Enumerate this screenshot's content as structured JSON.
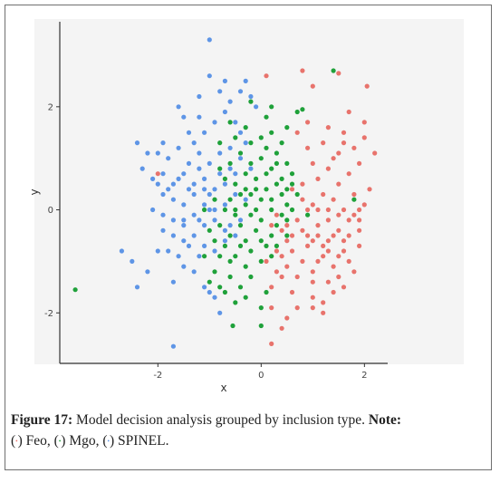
{
  "chart_data": {
    "type": "scatter",
    "xlabel": "x",
    "ylabel": "y",
    "xlim": [
      -3.9,
      2.45
    ],
    "ylim": [
      -2.98,
      3.65
    ],
    "xticks": [
      -2,
      0,
      2
    ],
    "yticks": [
      -2,
      0,
      2
    ],
    "tick_labels_x": [
      "-2",
      "0",
      "2"
    ],
    "tick_labels_y": [
      "-2",
      "0",
      "2"
    ],
    "grid": false,
    "series": [
      {
        "name": "Feo",
        "color": "#e8736c",
        "points": [
          [
            0.3,
            -0.1
          ],
          [
            0.5,
            -0.3
          ],
          [
            0.7,
            -0.2
          ],
          [
            0.9,
            -0.5
          ],
          [
            1.1,
            -0.3
          ],
          [
            1.3,
            -0.6
          ],
          [
            0.6,
            -0.8
          ],
          [
            0.8,
            -1.0
          ],
          [
            1.0,
            -1.2
          ],
          [
            1.2,
            -0.9
          ],
          [
            1.4,
            -1.1
          ],
          [
            1.6,
            -0.8
          ],
          [
            0.4,
            -1.3
          ],
          [
            0.2,
            -1.5
          ],
          [
            0.6,
            -1.6
          ],
          [
            1.0,
            -1.7
          ],
          [
            1.3,
            -1.4
          ],
          [
            1.5,
            -1.3
          ],
          [
            1.7,
            -1.0
          ],
          [
            1.9,
            -0.7
          ],
          [
            0.8,
            0.2
          ],
          [
            1.0,
            0.1
          ],
          [
            1.2,
            0.3
          ],
          [
            1.4,
            0.2
          ],
          [
            1.6,
            0.0
          ],
          [
            1.8,
            0.3
          ],
          [
            2.0,
            0.1
          ],
          [
            1.1,
            0.6
          ],
          [
            1.3,
            0.8
          ],
          [
            1.5,
            0.5
          ],
          [
            1.7,
            0.7
          ],
          [
            1.9,
            0.9
          ],
          [
            1.0,
            0.9
          ],
          [
            0.9,
            1.2
          ],
          [
            1.2,
            1.3
          ],
          [
            1.5,
            1.1
          ],
          [
            1.8,
            1.2
          ],
          [
            2.0,
            1.4
          ],
          [
            2.2,
            1.1
          ],
          [
            1.3,
            1.6
          ],
          [
            1.6,
            1.5
          ],
          [
            0.7,
            1.5
          ],
          [
            0.5,
            -0.6
          ],
          [
            0.3,
            -0.8
          ],
          [
            0.1,
            -1.0
          ],
          [
            0.2,
            -1.9
          ],
          [
            0.5,
            -2.1
          ],
          [
            0.7,
            -1.9
          ],
          [
            1.0,
            -1.9
          ],
          [
            1.2,
            -2.0
          ],
          [
            0.4,
            -2.3
          ],
          [
            0.2,
            -2.6
          ],
          [
            1.4,
            -1.6
          ],
          [
            1.6,
            -1.5
          ],
          [
            1.8,
            -1.2
          ],
          [
            0.9,
            -0.7
          ],
          [
            1.1,
            -0.5
          ],
          [
            1.3,
            -0.2
          ],
          [
            1.5,
            -0.4
          ],
          [
            1.7,
            -0.5
          ],
          [
            1.9,
            -0.2
          ],
          [
            0.6,
            0.4
          ],
          [
            0.8,
            0.5
          ],
          [
            1.4,
            1.0
          ],
          [
            1.6,
            1.3
          ],
          [
            2.1,
            0.4
          ],
          [
            1.0,
            -1.4
          ],
          [
            0.7,
            -1.3
          ],
          [
            0.5,
            -1.1
          ],
          [
            1.1,
            -1.0
          ],
          [
            1.3,
            -0.8
          ],
          [
            1.5,
            -0.9
          ],
          [
            0.8,
            -0.4
          ],
          [
            1.0,
            -0.6
          ],
          [
            1.2,
            -0.7
          ],
          [
            1.4,
            -0.5
          ],
          [
            0.4,
            -0.4
          ],
          [
            0.6,
            -0.5
          ],
          [
            0.2,
            -0.3
          ],
          [
            0.9,
            0.0
          ],
          [
            1.1,
            0.0
          ],
          [
            1.3,
            0.0
          ],
          [
            1.5,
            -0.1
          ],
          [
            1.7,
            -0.2
          ],
          [
            1.9,
            0.0
          ],
          [
            2.05,
            2.4
          ],
          [
            1.5,
            2.65
          ],
          [
            1.0,
            2.4
          ],
          [
            0.8,
            2.7
          ],
          [
            0.1,
            2.6
          ],
          [
            -2.0,
            0.7
          ],
          [
            1.9,
            -0.4
          ],
          [
            1.7,
            1.9
          ],
          [
            2.0,
            1.7
          ],
          [
            0.9,
            1.7
          ],
          [
            1.2,
            -1.8
          ],
          [
            0.4,
            -0.9
          ],
          [
            0.3,
            -1.2
          ],
          [
            1.8,
            -0.1
          ],
          [
            1.6,
            -0.6
          ]
        ]
      },
      {
        "name": "Mgo",
        "color": "#1fa13a",
        "points": [
          [
            0.0,
            0.2
          ],
          [
            0.1,
            0.4
          ],
          [
            -0.1,
            0.6
          ],
          [
            0.2,
            0.8
          ],
          [
            0.3,
            0.5
          ],
          [
            0.4,
            0.3
          ],
          [
            0.5,
            0.1
          ],
          [
            0.2,
            0.0
          ],
          [
            0.0,
            -0.2
          ],
          [
            -0.2,
            -0.1
          ],
          [
            -0.3,
            0.1
          ],
          [
            -0.4,
            0.3
          ],
          [
            -0.5,
            0.5
          ],
          [
            -0.3,
            0.7
          ],
          [
            -0.2,
            0.9
          ],
          [
            0.0,
            1.0
          ],
          [
            0.1,
            1.2
          ],
          [
            0.3,
            1.1
          ],
          [
            0.5,
            0.9
          ],
          [
            0.6,
            0.7
          ],
          [
            0.4,
            1.3
          ],
          [
            0.2,
            1.5
          ],
          [
            0.0,
            1.4
          ],
          [
            -0.2,
            1.3
          ],
          [
            -0.4,
            1.1
          ],
          [
            -0.6,
            0.9
          ],
          [
            -0.7,
            0.6
          ],
          [
            -0.6,
            0.2
          ],
          [
            -0.5,
            -0.1
          ],
          [
            -0.4,
            -0.3
          ],
          [
            -0.6,
            -0.5
          ],
          [
            -0.8,
            -0.3
          ],
          [
            -0.7,
            -0.7
          ],
          [
            -0.5,
            -0.9
          ],
          [
            -0.3,
            -1.1
          ],
          [
            -0.6,
            -1.3
          ],
          [
            -0.4,
            -1.5
          ],
          [
            -0.2,
            -1.3
          ],
          [
            0.0,
            -1.0
          ],
          [
            0.1,
            -0.7
          ],
          [
            0.2,
            -0.5
          ],
          [
            0.3,
            -0.3
          ],
          [
            0.5,
            -0.2
          ],
          [
            0.6,
            0.0
          ],
          [
            0.5,
            0.4
          ],
          [
            0.7,
            0.3
          ],
          [
            -0.1,
            -0.4
          ],
          [
            -0.3,
            -0.6
          ],
          [
            -0.8,
            -0.9
          ],
          [
            -0.9,
            -1.2
          ],
          [
            -0.7,
            -1.6
          ],
          [
            -0.5,
            -1.8
          ],
          [
            -0.3,
            -1.7
          ],
          [
            0.1,
            -1.6
          ],
          [
            0.0,
            -1.9
          ],
          [
            -0.2,
            0.3
          ],
          [
            -0.1,
            0.0
          ],
          [
            0.2,
            0.2
          ],
          [
            0.4,
            0.6
          ],
          [
            0.3,
            0.9
          ],
          [
            0.1,
            0.7
          ],
          [
            -0.5,
            0.0
          ],
          [
            -0.7,
            0.0
          ],
          [
            -0.9,
            0.2
          ],
          [
            -1.1,
            0.0
          ],
          [
            -1.0,
            -0.4
          ],
          [
            -0.9,
            -0.6
          ],
          [
            -1.1,
            -0.9
          ],
          [
            -1.0,
            -1.4
          ],
          [
            -0.8,
            -1.5
          ],
          [
            -0.6,
            -1.0
          ],
          [
            -0.2,
            -0.8
          ],
          [
            0.0,
            -0.6
          ],
          [
            -0.4,
            -0.7
          ],
          [
            0.2,
            -0.9
          ],
          [
            0.4,
            -0.1
          ],
          [
            0.6,
            0.5
          ],
          [
            -0.5,
            1.4
          ],
          [
            -0.3,
            1.6
          ],
          [
            0.1,
            1.8
          ],
          [
            -0.6,
            1.7
          ],
          [
            0.7,
            1.9
          ],
          [
            0.8,
            1.95
          ],
          [
            -0.8,
            1.3
          ],
          [
            0.9,
            -0.1
          ],
          [
            1.4,
            2.7
          ],
          [
            1.8,
            0.2
          ],
          [
            -3.6,
            -1.55
          ],
          [
            -0.55,
            -2.25
          ],
          [
            0.0,
            -2.25
          ],
          [
            0.2,
            2.0
          ],
          [
            -0.2,
            2.1
          ],
          [
            0.5,
            1.6
          ],
          [
            0.3,
            -0.7
          ],
          [
            -0.1,
            0.4
          ],
          [
            -0.3,
            0.4
          ],
          [
            0.5,
            -0.5
          ],
          [
            -0.8,
            0.8
          ]
        ]
      },
      {
        "name": "SPINEL",
        "color": "#5e95e6",
        "points": [
          [
            -1.0,
            3.3
          ],
          [
            -1.0,
            2.6
          ],
          [
            -0.7,
            2.5
          ],
          [
            -0.3,
            2.5
          ],
          [
            -0.2,
            2.2
          ],
          [
            -0.4,
            2.3
          ],
          [
            -0.6,
            2.1
          ],
          [
            -1.2,
            2.2
          ],
          [
            -1.6,
            2.0
          ],
          [
            -1.5,
            1.8
          ],
          [
            -1.4,
            1.5
          ],
          [
            -1.3,
            1.3
          ],
          [
            -1.1,
            1.5
          ],
          [
            -0.9,
            1.7
          ],
          [
            -0.7,
            1.9
          ],
          [
            -0.5,
            1.7
          ],
          [
            -0.4,
            1.5
          ],
          [
            -2.4,
            1.3
          ],
          [
            -2.0,
            1.1
          ],
          [
            -1.8,
            1.0
          ],
          [
            -1.6,
            1.2
          ],
          [
            -1.4,
            0.9
          ],
          [
            -1.2,
            1.1
          ],
          [
            -1.0,
            0.9
          ],
          [
            -0.8,
            1.1
          ],
          [
            -0.6,
            1.2
          ],
          [
            -0.4,
            1.0
          ],
          [
            -0.2,
            0.8
          ],
          [
            -2.3,
            0.8
          ],
          [
            -2.1,
            0.6
          ],
          [
            -1.9,
            0.7
          ],
          [
            -1.7,
            0.5
          ],
          [
            -1.5,
            0.7
          ],
          [
            -1.3,
            0.5
          ],
          [
            -1.1,
            0.6
          ],
          [
            -0.9,
            0.4
          ],
          [
            -0.7,
            0.5
          ],
          [
            -0.5,
            0.3
          ],
          [
            -1.9,
            0.3
          ],
          [
            -1.7,
            0.2
          ],
          [
            -1.5,
            0.1
          ],
          [
            -1.3,
            0.3
          ],
          [
            -1.1,
            0.1
          ],
          [
            -0.9,
            0.0
          ],
          [
            -0.7,
            0.1
          ],
          [
            -2.1,
            0.0
          ],
          [
            -1.9,
            -0.1
          ],
          [
            -1.7,
            -0.2
          ],
          [
            -1.5,
            -0.3
          ],
          [
            -1.3,
            -0.1
          ],
          [
            -1.1,
            -0.3
          ],
          [
            -0.9,
            -0.2
          ],
          [
            -0.7,
            -0.4
          ],
          [
            -0.5,
            -0.5
          ],
          [
            -1.7,
            -0.5
          ],
          [
            -1.5,
            -0.6
          ],
          [
            -1.3,
            -0.5
          ],
          [
            -1.1,
            -0.7
          ],
          [
            -0.9,
            -0.8
          ],
          [
            -1.9,
            -0.4
          ],
          [
            -2.7,
            -0.8
          ],
          [
            -1.8,
            -0.8
          ],
          [
            -1.6,
            -0.9
          ],
          [
            -1.4,
            -0.7
          ],
          [
            -1.2,
            -0.9
          ],
          [
            -2.2,
            -1.2
          ],
          [
            -2.4,
            -1.5
          ],
          [
            -1.7,
            -1.4
          ],
          [
            -1.5,
            -1.1
          ],
          [
            -1.3,
            -1.2
          ],
          [
            -1.1,
            -1.5
          ],
          [
            -0.9,
            -1.7
          ],
          [
            -1.0,
            -1.6
          ],
          [
            -0.8,
            -2.0
          ],
          [
            -1.7,
            -2.65
          ],
          [
            -2.5,
            -1.0
          ],
          [
            -2.0,
            -0.8
          ],
          [
            -1.2,
            0.8
          ],
          [
            -0.3,
            1.3
          ],
          [
            -0.6,
            0.8
          ],
          [
            -0.8,
            0.7
          ],
          [
            -1.0,
            0.3
          ],
          [
            -1.2,
            -0.2
          ],
          [
            -1.4,
            0.4
          ],
          [
            -1.6,
            0.6
          ],
          [
            -1.8,
            0.4
          ],
          [
            -2.0,
            0.5
          ],
          [
            -0.4,
            -0.2
          ],
          [
            -0.6,
            -0.3
          ],
          [
            -0.3,
            0.2
          ],
          [
            -2.2,
            1.1
          ],
          [
            -1.9,
            1.3
          ],
          [
            -1.2,
            1.8
          ],
          [
            -0.1,
            2.0
          ],
          [
            -0.8,
            2.3
          ],
          [
            -1.0,
            0.0
          ],
          [
            -0.7,
            -0.6
          ],
          [
            -1.5,
            -0.2
          ],
          [
            -1.1,
            0.4
          ],
          [
            -0.5,
            0.7
          ]
        ]
      }
    ]
  },
  "caption": {
    "fig_label": "Figure 17:",
    "text": " Model decision analysis grouped by inclusion type. ",
    "note_label": "Note:",
    "legend": [
      {
        "open": "(",
        "symbol": "•",
        "close": ") Feo,",
        "color": "#e8736c"
      },
      {
        "open": " (",
        "symbol": "•",
        "close": ") Mgo,",
        "color": "#1fa13a"
      },
      {
        "open": " (",
        "symbol": "•",
        "close": ") SPINEL.",
        "color": "#5e95e6"
      }
    ]
  }
}
